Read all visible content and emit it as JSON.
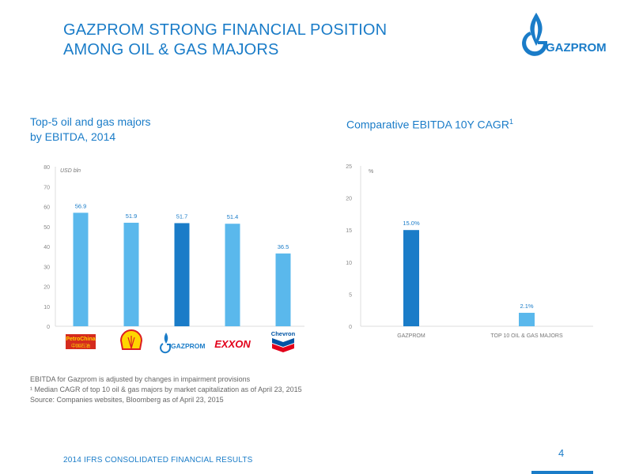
{
  "header": {
    "title_line1": "GAZPROM STRONG FINANCIAL POSITION",
    "title_line2": "AMONG OIL & GAS MAJORS",
    "logo_text": "GAZPROM"
  },
  "colors": {
    "accent": "#1a7cc8",
    "bar_light": "#5ab8ec",
    "bar_dark": "#1a7cc8"
  },
  "chart_data": [
    {
      "type": "bar",
      "title_line1": "Top-5 oil and gas majors",
      "title_line2": "by EBITDA, 2014",
      "ylabel": "USD bln",
      "ylim": [
        0,
        80
      ],
      "yticks": [
        "0",
        "10",
        "20",
        "30",
        "40",
        "50",
        "60",
        "70",
        "80"
      ],
      "categories": [
        "PetroChina",
        "Shell",
        "GAZPROM",
        "Exxon",
        "Chevron"
      ],
      "values": [
        56.9,
        51.9,
        51.7,
        51.4,
        36.5
      ],
      "value_labels": [
        "56.9",
        "51.9",
        "51.7",
        "51.4",
        "36.5"
      ],
      "highlight": "GAZPROM",
      "grid": false
    },
    {
      "type": "bar",
      "title": "Comparative EBITDA 10Y CAGR",
      "title_sup": "1",
      "ylabel": "%",
      "ylim": [
        0,
        25
      ],
      "yticks": [
        "0",
        "5",
        "10",
        "15",
        "20",
        "25"
      ],
      "categories": [
        "GAZPROM",
        "TOP 10 OIL & GAS MAJORS"
      ],
      "values": [
        15.0,
        2.1
      ],
      "value_labels": [
        "15.0%",
        "2.1%"
      ],
      "highlight": "GAZPROM",
      "grid": false
    }
  ],
  "notes": {
    "line1": "EBITDA for Gazprom is adjusted by changes in impairment provisions",
    "line2": "¹ Median CAGR of top 10 oil & gas majors by market capitalization as of April 23, 2015",
    "line3": "Source: Companies websites, Bloomberg as of April 23, 2015"
  },
  "footer": {
    "text": "2014 IFRS CONSOLIDATED FINANCIAL RESULTS",
    "page": "4"
  },
  "logos": {
    "petrochina_line1": "PetroChina",
    "petrochina_line2": "中国石油",
    "gazprom": "GAZPROM",
    "exxon": "EXXON",
    "chevron": "Chevron"
  }
}
